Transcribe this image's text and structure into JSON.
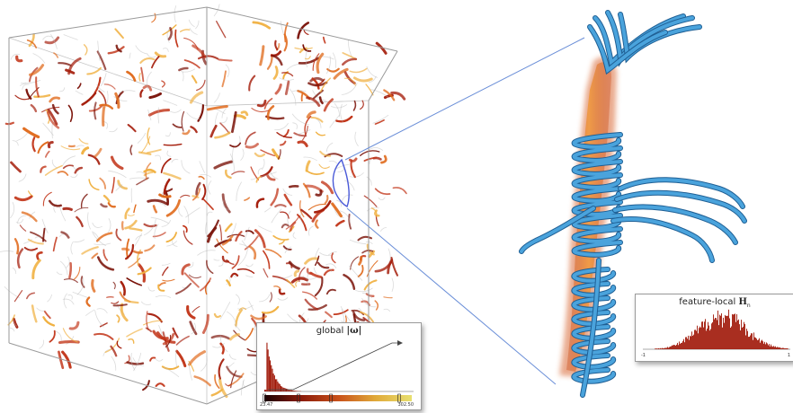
{
  "global_histogram": {
    "title_prefix": "global ",
    "title_symbol": "|ω|",
    "min_label": "23.47",
    "max_label": "302.50",
    "bar_color": "#a01808",
    "colormap": [
      "#1a0000",
      "#8a1b0a",
      "#c8501a",
      "#e0a838",
      "#e8e070"
    ]
  },
  "local_histogram": {
    "title_prefix": "feature-local ",
    "title_symbol": "H",
    "title_subscript": "n",
    "min_label": "-1",
    "max_label": "1",
    "bar_color": "#a01808"
  },
  "colors": {
    "vortex_red": "#a51e0c",
    "vortex_orange": "#e06a1c",
    "vortex_yellow": "#f0b040",
    "streamline_blue": "#4aa3dc",
    "connector_blue": "#6b8fd8",
    "cube_edge": "#9a9a9a"
  }
}
